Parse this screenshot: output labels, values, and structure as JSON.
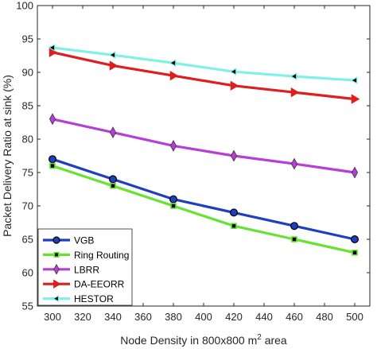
{
  "chart_data": {
    "type": "line",
    "title": "",
    "xlabel_prefix": "Node Density in 800x800 m",
    "xlabel_sup": "2",
    "xlabel_suffix": " area",
    "ylabel": "Packet Delivery Ratio at sink (%)",
    "xlim": [
      290,
      510
    ],
    "ylim": [
      55,
      100
    ],
    "xticks": [
      300,
      320,
      340,
      360,
      380,
      400,
      420,
      440,
      460,
      480,
      500
    ],
    "yticks": [
      55,
      60,
      65,
      70,
      75,
      80,
      85,
      90,
      95,
      100
    ],
    "grid": false,
    "legend_position": "bottom-left",
    "x": [
      300,
      340,
      380,
      420,
      460,
      500
    ],
    "series": [
      {
        "name": "VGB",
        "color": "#1f3fbf",
        "marker": "circle",
        "values": [
          77,
          74,
          71,
          69,
          67,
          65
        ]
      },
      {
        "name": "Ring Routing",
        "color": "#66e233",
        "marker": "square",
        "values": [
          76,
          73,
          70,
          67,
          65,
          63
        ]
      },
      {
        "name": "LBRR",
        "color": "#b63fd6",
        "marker": "diamond",
        "values": [
          83,
          81,
          79,
          77.5,
          76.3,
          75
        ]
      },
      {
        "name": "DA-EEORR",
        "color": "#dd1f1f",
        "marker": "triangle-right",
        "values": [
          93,
          91,
          89.5,
          88,
          87,
          86
        ]
      },
      {
        "name": "HESTOR",
        "color": "#7ff1e6",
        "marker": "triangle-left",
        "values": [
          93.7,
          92.6,
          91.4,
          90.1,
          89.4,
          88.8
        ]
      }
    ]
  }
}
